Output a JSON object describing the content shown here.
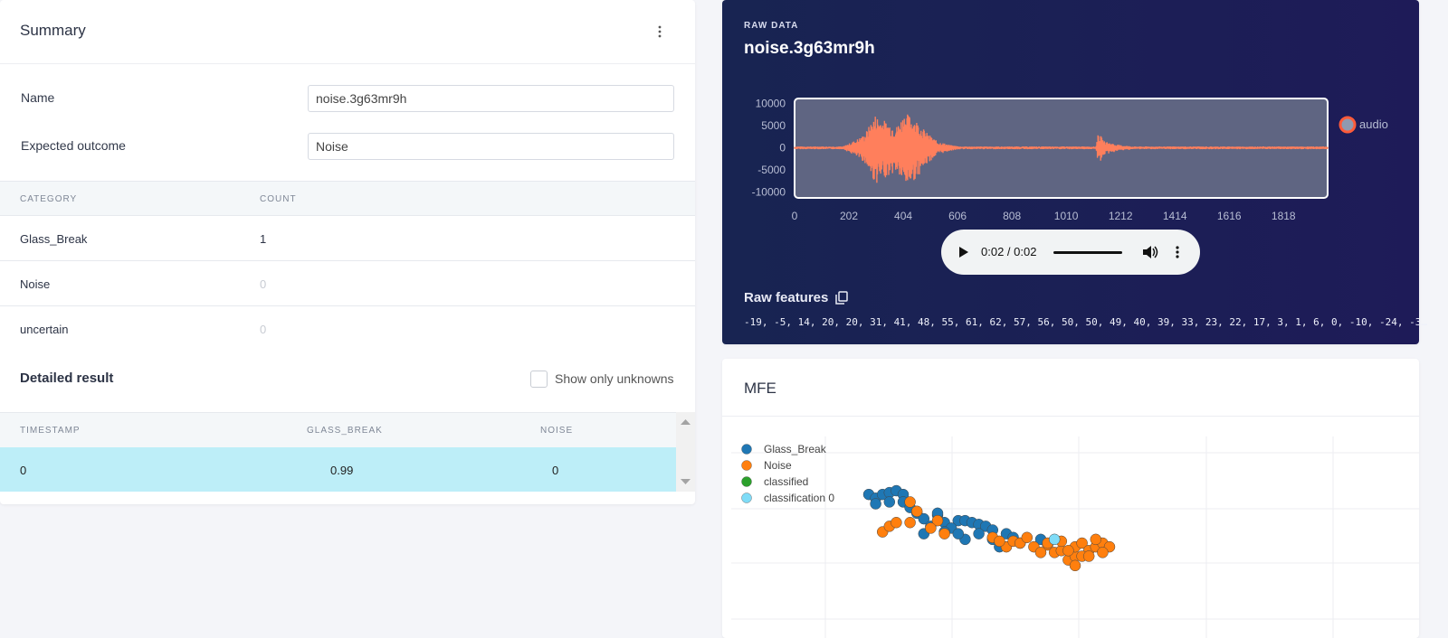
{
  "summary": {
    "title": "Summary",
    "name_label": "Name",
    "name_value": "noise.3g63mr9h",
    "outcome_label": "Expected outcome",
    "outcome_value": "Noise"
  },
  "category_table": {
    "headers": [
      "CATEGORY",
      "COUNT"
    ],
    "rows": [
      {
        "category": "Glass_Break",
        "count": "1"
      },
      {
        "category": "Noise",
        "count": "0"
      },
      {
        "category": "uncertain",
        "count": "0"
      }
    ]
  },
  "detailed": {
    "title": "Detailed result",
    "checkbox_label": "Show only unknowns",
    "checked": false,
    "headers": [
      "TIMESTAMP",
      "GLASS_BREAK",
      "NOISE"
    ],
    "rows": [
      {
        "timestamp": "0",
        "glass_break": "0.99",
        "noise": "0"
      }
    ]
  },
  "raw": {
    "section_label": "RAW DATA",
    "title": "noise.3g63mr9h",
    "player_time": "0:02 / 0:02",
    "features_label": "Raw features",
    "features": "-19, -5, 14, 20, 20, 31, 41, 48, 55, 61, 62, 57, 56, 50, 50, 49, 40, 39, 33, 23, 22, 17, 3, 1, 6, 0, -10, -24, -3…"
  },
  "mfe": {
    "title": "MFE"
  },
  "colors": {
    "wave": "#ff7f5c",
    "glass": "#1f77b4",
    "noise": "#ff7f0e",
    "classified": "#2ca02c",
    "classification": "#7fdcf7",
    "highlight": "#bdeef8"
  },
  "chart_data": [
    {
      "type": "line",
      "title": "",
      "legend": [
        "audio"
      ],
      "legend_placement": "right",
      "xlim": [
        0,
        1982
      ],
      "ylim": [
        -11300,
        11100
      ],
      "xticks": [
        "0",
        "202",
        "404",
        "606",
        "808",
        "1010",
        "1212",
        "1414",
        "1616",
        "1818"
      ],
      "xtick_values": [
        0,
        202,
        404,
        606,
        808,
        1010,
        1212,
        1414,
        1616,
        1818
      ],
      "yticks": [
        "10000",
        "5000",
        "0",
        "-5000",
        "-10000"
      ],
      "ytick_values": [
        10000,
        5000,
        0,
        -5000,
        -10000
      ],
      "envelope": [
        [
          0,
          300
        ],
        [
          180,
          300
        ],
        [
          220,
          1500
        ],
        [
          260,
          3000
        ],
        [
          300,
          7500
        ],
        [
          340,
          6000
        ],
        [
          380,
          5000
        ],
        [
          410,
          8000
        ],
        [
          450,
          6500
        ],
        [
          490,
          3500
        ],
        [
          530,
          1500
        ],
        [
          580,
          600
        ],
        [
          620,
          300
        ],
        [
          1120,
          300
        ],
        [
          1130,
          3500
        ],
        [
          1150,
          1500
        ],
        [
          1200,
          700
        ],
        [
          1260,
          300
        ],
        [
          1982,
          300
        ]
      ]
    },
    {
      "type": "scatter",
      "title": "MFE",
      "xlim": [
        0,
        100
      ],
      "ylim": [
        0,
        100
      ],
      "legend_placement": "top-left",
      "series": [
        {
          "name": "Glass_Break",
          "color": "#1f77b4",
          "points": [
            [
              20,
              69
            ],
            [
              21,
              67
            ],
            [
              22,
              69
            ],
            [
              23,
              70
            ],
            [
              24,
              71
            ],
            [
              25,
              69
            ],
            [
              21,
              64
            ],
            [
              23,
              65
            ],
            [
              25,
              65
            ],
            [
              26,
              62
            ],
            [
              27,
              59
            ],
            [
              28,
              56
            ],
            [
              29,
              52
            ],
            [
              30,
              58
            ],
            [
              31,
              54
            ],
            [
              33,
              55
            ],
            [
              34,
              55
            ],
            [
              35,
              54
            ],
            [
              36,
              53
            ],
            [
              37,
              52
            ],
            [
              38,
              50
            ],
            [
              40,
              48
            ],
            [
              38,
              45
            ],
            [
              34,
              45
            ],
            [
              41,
              46
            ],
            [
              30,
              59
            ],
            [
              28,
              48
            ],
            [
              32,
              51
            ],
            [
              33,
              48
            ],
            [
              36,
              48
            ],
            [
              39,
              41
            ],
            [
              45,
              45
            ],
            [
              42,
              43
            ],
            [
              31,
              49
            ]
          ]
        },
        {
          "name": "Noise",
          "color": "#ff7f0e",
          "points": [
            [
              22,
              49
            ],
            [
              23,
              52
            ],
            [
              24,
              54
            ],
            [
              26,
              54
            ],
            [
              27,
              60
            ],
            [
              26,
              65
            ],
            [
              30,
              55
            ],
            [
              29,
              51
            ],
            [
              31,
              48
            ],
            [
              38,
              46
            ],
            [
              40,
              41
            ],
            [
              41,
              44
            ],
            [
              42,
              43
            ],
            [
              43,
              46
            ],
            [
              44,
              41
            ],
            [
              46,
              42
            ],
            [
              47,
              38
            ],
            [
              48,
              39
            ],
            [
              49,
              34
            ],
            [
              50,
              36
            ],
            [
              50,
              41
            ],
            [
              51,
              43
            ],
            [
              52,
              39
            ],
            [
              53,
              41
            ],
            [
              54,
              43
            ],
            [
              55,
              41
            ],
            [
              54,
              38
            ],
            [
              51,
              36
            ],
            [
              50,
              31
            ],
            [
              46,
              43
            ],
            [
              45,
              38
            ],
            [
              39,
              44
            ],
            [
              48,
              44
            ],
            [
              52,
              36
            ],
            [
              53,
              45
            ],
            [
              49,
              39
            ]
          ]
        },
        {
          "name": "classified",
          "color": "#2ca02c",
          "points": []
        },
        {
          "name": "classification 0",
          "color": "#7fdcf7",
          "points": [
            [
              47,
              45
            ]
          ]
        }
      ]
    }
  ]
}
